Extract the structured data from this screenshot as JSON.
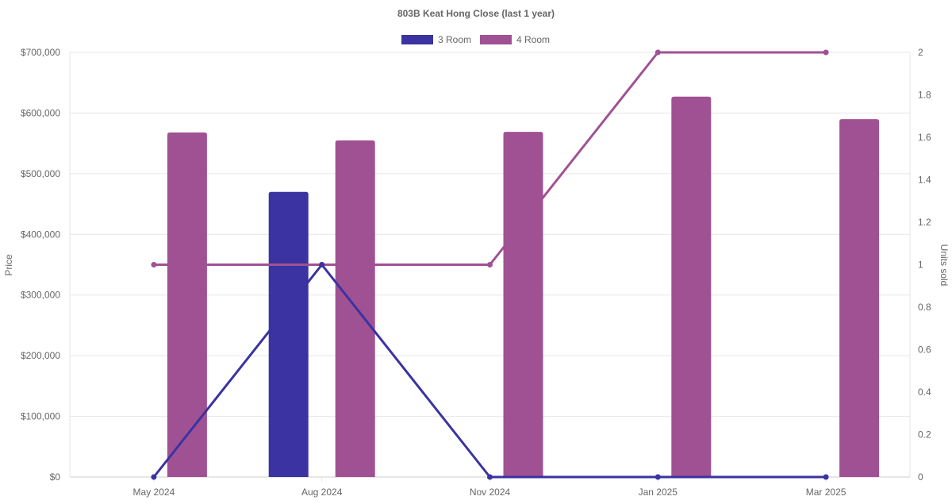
{
  "chart_data": {
    "type": "bar",
    "title": "803B Keat Hong Close (last 1 year)",
    "categories": [
      "May 2024",
      "Aug 2024",
      "Nov 2024",
      "Jan 2025",
      "Mar 2025"
    ],
    "ylabel": "Price",
    "y2label": "Units sold",
    "ylim": [
      0,
      700000
    ],
    "y2lim": [
      0,
      2
    ],
    "yticks": [
      "$0",
      "$100,000",
      "$200,000",
      "$300,000",
      "$400,000",
      "$500,000",
      "$600,000",
      "$700,000"
    ],
    "y2ticks": [
      "0",
      "0.2",
      "0.4",
      "0.6",
      "0.8",
      "1",
      "1.2",
      "1.4",
      "1.6",
      "1.8",
      "2"
    ],
    "grid": true,
    "legend_position": "top",
    "series": [
      {
        "name": "3 Room",
        "color": "#3a33a1",
        "price": [
          null,
          470000,
          null,
          null,
          null
        ],
        "units_sold": [
          0,
          1,
          0,
          0,
          0
        ]
      },
      {
        "name": "4 Room",
        "color": "#a05193",
        "price": [
          568000,
          555000,
          569000,
          627000,
          590000
        ],
        "units_sold": [
          1,
          1,
          1,
          2,
          2
        ]
      }
    ]
  }
}
